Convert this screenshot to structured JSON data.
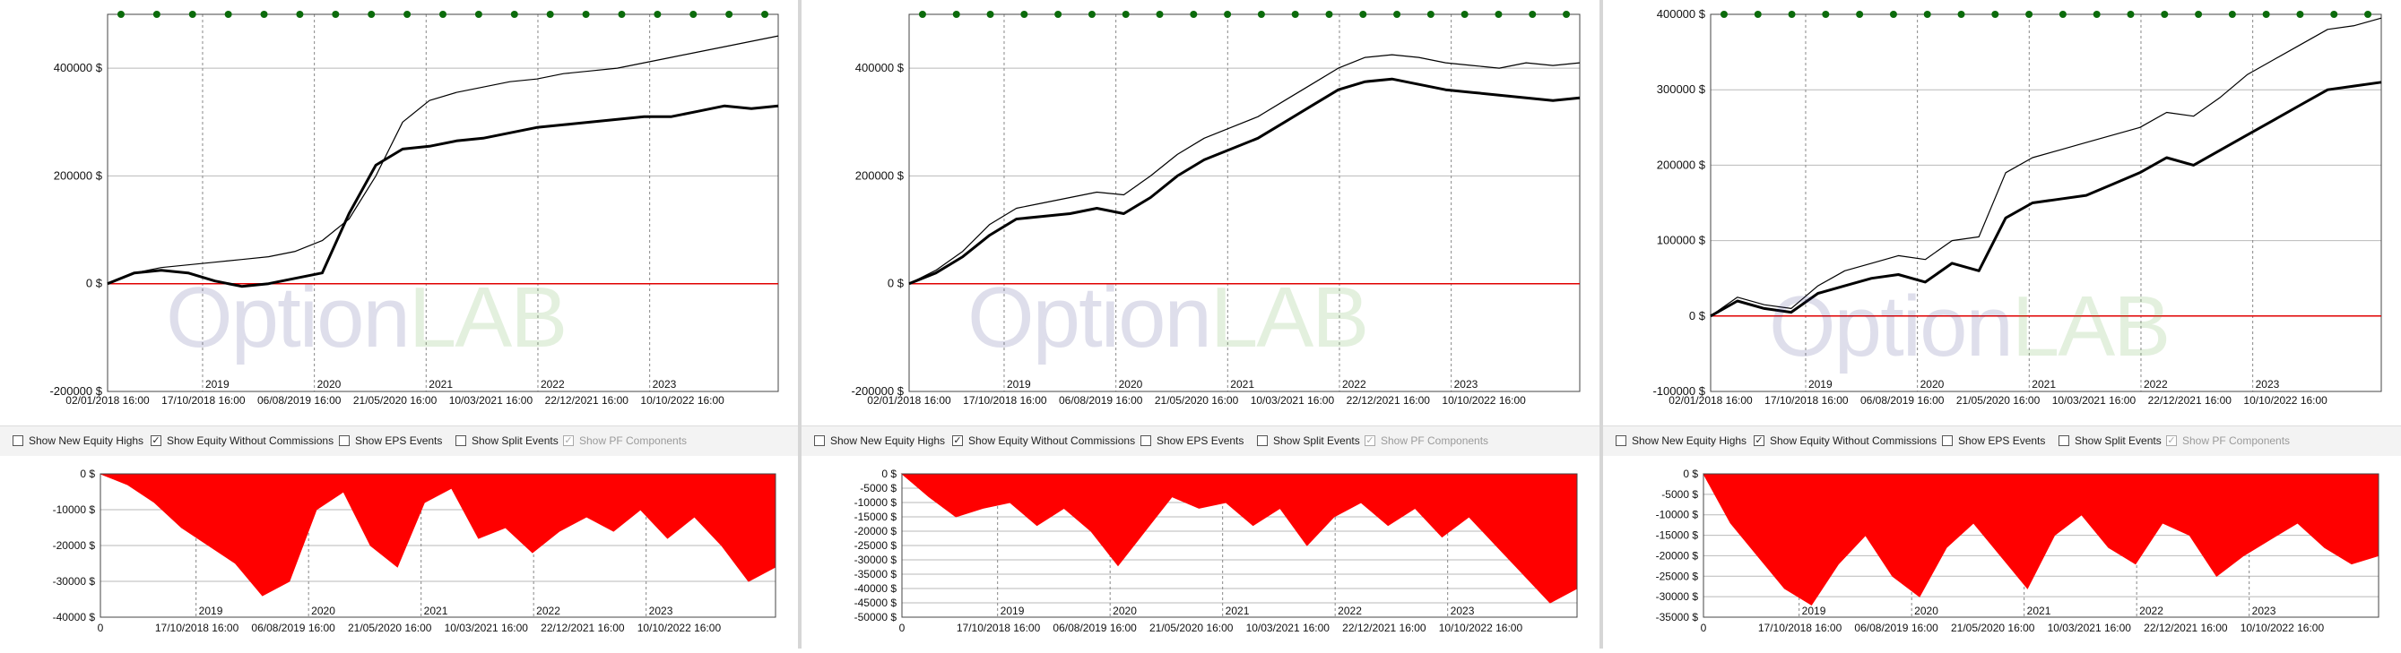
{
  "options": [
    {
      "label": "Show New Equity Highs",
      "checked": false,
      "enabled": true
    },
    {
      "label": "Show Equity Without Commissions",
      "checked": true,
      "enabled": true
    },
    {
      "label": "Show EPS Events",
      "checked": false,
      "enabled": true
    },
    {
      "label": "Show Split Events",
      "checked": false,
      "enabled": true
    },
    {
      "label": "Show PF Components",
      "checked": true,
      "enabled": false
    }
  ],
  "watermark": {
    "part1": "Option",
    "part2": "LAB"
  },
  "colors": {
    "equity": "#000000",
    "equity_no_commissions": "#000000",
    "zero_line": "#e00000",
    "drawdown_fill": "#ff0000",
    "markers": "#0b6b0b",
    "grid": "#b9b9b9"
  },
  "chart_data": [
    {
      "type": "line",
      "title": "",
      "x_ticks": [
        "02/01/2018 16:00",
        "17/10/2018 16:00",
        "06/08/2019 16:00",
        "21/05/2020 16:00",
        "10/03/2021 16:00",
        "22/12/2021 16:00",
        "10/10/2022 16:00"
      ],
      "year_markers": [
        "2019",
        "2020",
        "2021",
        "2022",
        "2023"
      ],
      "y_ticks": [
        "400000 $",
        "200000 $",
        "0 $",
        "-200000 $"
      ],
      "ylim": [
        -200000,
        500000
      ],
      "x": [
        0,
        0.04,
        0.08,
        0.12,
        0.16,
        0.2,
        0.24,
        0.28,
        0.32,
        0.36,
        0.4,
        0.44,
        0.48,
        0.52,
        0.56,
        0.6,
        0.64,
        0.68,
        0.72,
        0.76,
        0.8,
        0.84,
        0.88,
        0.92,
        0.96,
        1
      ],
      "series": [
        {
          "values": [
            0,
            20000,
            25000,
            20000,
            5000,
            -5000,
            0,
            10000,
            20000,
            130000,
            220000,
            250000,
            255000,
            265000,
            270000,
            280000,
            290000,
            295000,
            300000,
            305000,
            310000,
            310000,
            320000,
            330000,
            325000,
            330000
          ]
        },
        {
          "values": [
            0,
            20000,
            30000,
            35000,
            40000,
            45000,
            50000,
            60000,
            80000,
            120000,
            200000,
            300000,
            340000,
            355000,
            365000,
            375000,
            380000,
            390000,
            395000,
            400000,
            410000,
            420000,
            430000,
            440000,
            450000,
            460000
          ]
        }
      ],
      "new_high_markers": 19
    },
    {
      "type": "line",
      "title": "",
      "x_ticks": [
        "02/01/2018 16:00",
        "17/10/2018 16:00",
        "06/08/2019 16:00",
        "21/05/2020 16:00",
        "10/03/2021 16:00",
        "22/12/2021 16:00",
        "10/10/2022 16:00"
      ],
      "year_markers": [
        "2019",
        "2020",
        "2021",
        "2022",
        "2023"
      ],
      "y_ticks": [
        "400000 $",
        "200000 $",
        "0 $",
        "-200000 $"
      ],
      "ylim": [
        -200000,
        500000
      ],
      "x": [
        0,
        0.04,
        0.08,
        0.12,
        0.16,
        0.2,
        0.24,
        0.28,
        0.32,
        0.36,
        0.4,
        0.44,
        0.48,
        0.52,
        0.56,
        0.6,
        0.64,
        0.68,
        0.72,
        0.76,
        0.8,
        0.84,
        0.88,
        0.92,
        0.96,
        1
      ],
      "series": [
        {
          "values": [
            0,
            20000,
            50000,
            90000,
            120000,
            125000,
            130000,
            140000,
            130000,
            160000,
            200000,
            230000,
            250000,
            270000,
            300000,
            330000,
            360000,
            375000,
            380000,
            370000,
            360000,
            355000,
            350000,
            345000,
            340000,
            345000
          ]
        },
        {
          "values": [
            0,
            25000,
            60000,
            110000,
            140000,
            150000,
            160000,
            170000,
            165000,
            200000,
            240000,
            270000,
            290000,
            310000,
            340000,
            370000,
            400000,
            420000,
            425000,
            420000,
            410000,
            405000,
            400000,
            410000,
            405000,
            410000
          ]
        }
      ],
      "new_high_markers": 20
    },
    {
      "type": "line",
      "title": "",
      "x_ticks": [
        "02/01/2018 16:00",
        "17/10/2018 16:00",
        "06/08/2019 16:00",
        "21/05/2020 16:00",
        "10/03/2021 16:00",
        "22/12/2021 16:00",
        "10/10/2022 16:00"
      ],
      "year_markers": [
        "2019",
        "2020",
        "2021",
        "2022",
        "2023"
      ],
      "y_ticks": [
        "400000 $",
        "300000 $",
        "200000 $",
        "100000 $",
        "0 $",
        "-100000 $"
      ],
      "ylim": [
        -100000,
        400000
      ],
      "x": [
        0,
        0.04,
        0.08,
        0.12,
        0.16,
        0.2,
        0.24,
        0.28,
        0.32,
        0.36,
        0.4,
        0.44,
        0.48,
        0.52,
        0.56,
        0.6,
        0.64,
        0.68,
        0.72,
        0.76,
        0.8,
        0.84,
        0.88,
        0.92,
        0.96,
        1
      ],
      "series": [
        {
          "values": [
            0,
            20000,
            10000,
            5000,
            30000,
            40000,
            50000,
            55000,
            45000,
            70000,
            60000,
            130000,
            150000,
            155000,
            160000,
            175000,
            190000,
            210000,
            200000,
            220000,
            240000,
            260000,
            280000,
            300000,
            305000,
            310000
          ]
        },
        {
          "values": [
            0,
            25000,
            15000,
            10000,
            40000,
            60000,
            70000,
            80000,
            75000,
            100000,
            105000,
            190000,
            210000,
            220000,
            230000,
            240000,
            250000,
            270000,
            265000,
            290000,
            320000,
            340000,
            360000,
            380000,
            385000,
            395000
          ]
        }
      ],
      "new_high_markers": 20
    }
  ],
  "drawdown_charts": [
    {
      "type": "area",
      "x_ticks": [
        "0",
        "17/10/2018 16:00",
        "06/08/2019 16:00",
        "21/05/2020 16:00",
        "10/03/2021 16:00",
        "22/12/2021 16:00",
        "10/10/2022 16:00"
      ],
      "year_markers": [
        "2019",
        "2020",
        "2021",
        "2022",
        "2023"
      ],
      "y_ticks": [
        "0 $",
        "-10000 $",
        "-20000 $",
        "-30000 $",
        "-40000 $"
      ],
      "ylim": [
        -40000,
        0
      ],
      "x": [
        0,
        0.04,
        0.08,
        0.12,
        0.16,
        0.2,
        0.24,
        0.28,
        0.32,
        0.36,
        0.4,
        0.44,
        0.48,
        0.52,
        0.56,
        0.6,
        0.64,
        0.68,
        0.72,
        0.76,
        0.8,
        0.84,
        0.88,
        0.92,
        0.96,
        1
      ],
      "values": [
        0,
        -3000,
        -8000,
        -15000,
        -20000,
        -25000,
        -34000,
        -30000,
        -10000,
        -5000,
        -20000,
        -26000,
        -8000,
        -4000,
        -18000,
        -15000,
        -22000,
        -16000,
        -12000,
        -16000,
        -10000,
        -18000,
        -12000,
        -20000,
        -30000,
        -26000
      ]
    },
    {
      "type": "area",
      "x_ticks": [
        "0",
        "17/10/2018 16:00",
        "06/08/2019 16:00",
        "21/05/2020 16:00",
        "10/03/2021 16:00",
        "22/12/2021 16:00",
        "10/10/2022 16:00"
      ],
      "year_markers": [
        "2019",
        "2020",
        "2021",
        "2022",
        "2023"
      ],
      "y_ticks": [
        "0 $",
        "-5000 $",
        "-10000 $",
        "-15000 $",
        "-20000 $",
        "-25000 $",
        "-30000 $",
        "-35000 $",
        "-40000 $",
        "-45000 $",
        "-50000 $"
      ],
      "ylim": [
        -50000,
        0
      ],
      "x": [
        0,
        0.04,
        0.08,
        0.12,
        0.16,
        0.2,
        0.24,
        0.28,
        0.32,
        0.36,
        0.4,
        0.44,
        0.48,
        0.52,
        0.56,
        0.6,
        0.64,
        0.68,
        0.72,
        0.76,
        0.8,
        0.84,
        0.88,
        0.92,
        0.96,
        1
      ],
      "values": [
        0,
        -8000,
        -15000,
        -12000,
        -10000,
        -18000,
        -12000,
        -20000,
        -32000,
        -20000,
        -8000,
        -12000,
        -10000,
        -18000,
        -12000,
        -25000,
        -15000,
        -10000,
        -18000,
        -12000,
        -22000,
        -15000,
        -25000,
        -35000,
        -45000,
        -40000
      ]
    },
    {
      "type": "area",
      "x_ticks": [
        "0",
        "17/10/2018 16:00",
        "06/08/2019 16:00",
        "21/05/2020 16:00",
        "10/03/2021 16:00",
        "22/12/2021 16:00",
        "10/10/2022 16:00"
      ],
      "year_markers": [
        "2019",
        "2020",
        "2021",
        "2022",
        "2023"
      ],
      "y_ticks": [
        "0 $",
        "-5000 $",
        "-10000 $",
        "-15000 $",
        "-20000 $",
        "-25000 $",
        "-30000 $",
        "-35000 $"
      ],
      "ylim": [
        -35000,
        0
      ],
      "x": [
        0,
        0.04,
        0.08,
        0.12,
        0.16,
        0.2,
        0.24,
        0.28,
        0.32,
        0.36,
        0.4,
        0.44,
        0.48,
        0.52,
        0.56,
        0.6,
        0.64,
        0.68,
        0.72,
        0.76,
        0.8,
        0.84,
        0.88,
        0.92,
        0.96,
        1
      ],
      "values": [
        0,
        -12000,
        -20000,
        -28000,
        -32000,
        -22000,
        -15000,
        -25000,
        -30000,
        -18000,
        -12000,
        -20000,
        -28000,
        -15000,
        -10000,
        -18000,
        -22000,
        -12000,
        -15000,
        -25000,
        -20000,
        -16000,
        -12000,
        -18000,
        -22000,
        -20000
      ]
    }
  ]
}
